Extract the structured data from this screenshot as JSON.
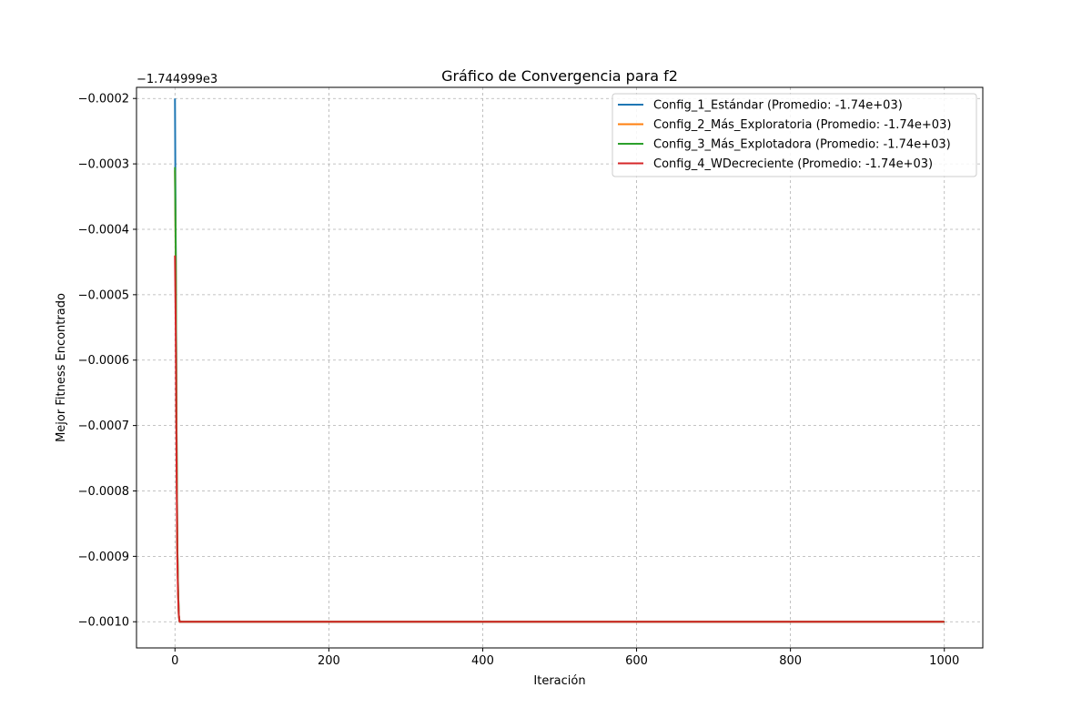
{
  "chart_data": {
    "type": "line",
    "title": "Gráfico de Convergencia para f2",
    "xlabel": "Iteración",
    "ylabel": "Mejor Fitness Encontrado",
    "offset_label": "−1.744999e3",
    "xlim": [
      -50,
      1050
    ],
    "ylim": [
      -0.00104,
      -0.000183
    ],
    "xticks": [
      0,
      200,
      400,
      600,
      800,
      1000
    ],
    "xtick_labels": [
      "0",
      "200",
      "400",
      "600",
      "800",
      "1000"
    ],
    "yticks": [
      -0.0002,
      -0.0003,
      -0.0004,
      -0.0005,
      -0.0006,
      -0.0007,
      -0.0008,
      -0.0009,
      -0.001
    ],
    "ytick_labels": [
      "−0.0002",
      "−0.0003",
      "−0.0004",
      "−0.0005",
      "−0.0006",
      "−0.0007",
      "−0.0008",
      "−0.0009",
      "−0.0010"
    ],
    "grid": true,
    "legend_position": "top-right",
    "series": [
      {
        "name": "Config_1_Estándar (Promedio: -1.74e+03)",
        "color": "#1f77b4",
        "x": [
          0,
          1,
          2,
          3,
          4,
          5,
          6,
          10,
          50,
          100,
          200,
          400,
          600,
          800,
          1000
        ],
        "y": [
          -0.0002,
          -0.00043,
          -0.0007,
          -0.00088,
          -0.00095,
          -0.00099,
          -0.001,
          -0.001,
          -0.001,
          -0.001,
          -0.001,
          -0.001,
          -0.001,
          -0.001,
          -0.001
        ]
      },
      {
        "name": "Config_2_Más_Exploratoria (Promedio: -1.74e+03)",
        "color": "#ff7f0e",
        "x": [
          0,
          1,
          2,
          3,
          4,
          5,
          6,
          10,
          50,
          100,
          200,
          400,
          600,
          800,
          1000
        ],
        "y": [
          -0.00031,
          -0.00045,
          -0.0007,
          -0.00088,
          -0.00095,
          -0.00099,
          -0.001,
          -0.001,
          -0.001,
          -0.001,
          -0.001,
          -0.001,
          -0.001,
          -0.001,
          -0.001
        ]
      },
      {
        "name": "Config_3_Más_Explotadora (Promedio: -1.74e+03)",
        "color": "#2ca02c",
        "x": [
          0,
          1,
          2,
          3,
          4,
          5,
          6,
          10,
          50,
          100,
          200,
          400,
          600,
          800,
          1000
        ],
        "y": [
          -0.000305,
          -0.00043,
          -0.0007,
          -0.00088,
          -0.00095,
          -0.00099,
          -0.001,
          -0.001,
          -0.001,
          -0.001,
          -0.001,
          -0.001,
          -0.001,
          -0.001,
          -0.001
        ]
      },
      {
        "name": "Config_4_WDecreciente (Promedio: -1.74e+03)",
        "color": "#d62728",
        "x": [
          0,
          1,
          2,
          3,
          4,
          5,
          6,
          10,
          50,
          100,
          200,
          400,
          600,
          800,
          1000
        ],
        "y": [
          -0.00044,
          -0.00055,
          -0.00075,
          -0.0009,
          -0.00096,
          -0.00099,
          -0.001,
          -0.001,
          -0.001,
          -0.001,
          -0.001,
          -0.001,
          -0.001,
          -0.001,
          -0.001
        ]
      }
    ]
  }
}
